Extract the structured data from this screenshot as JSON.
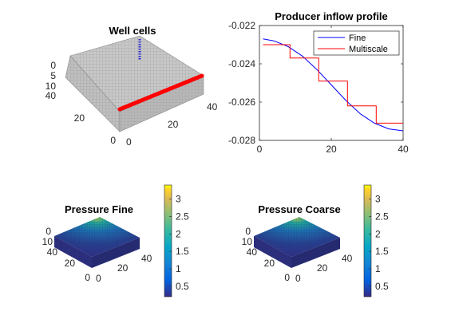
{
  "colors": {
    "grid_gray": "#b4b4b4",
    "well_red": "#ff0000",
    "well_blue": "#2a2ad0",
    "fine_line": "#0000ff",
    "ms_line": "#ff0000",
    "axis": "#262626"
  },
  "chart_data": [
    {
      "type": "scatter",
      "title": "Well cells",
      "x_ticks": [
        "0",
        "20",
        "40"
      ],
      "y_ticks": [
        "0",
        "20",
        "40"
      ],
      "z_ticks": [
        "0",
        "5",
        "10"
      ],
      "xlim": [
        0,
        40
      ],
      "ylim": [
        0,
        40
      ],
      "zlim": [
        0,
        10
      ]
    },
    {
      "type": "line",
      "title": "Producer inflow profile",
      "xlim": [
        0,
        40
      ],
      "ylim": [
        -0.028,
        -0.022
      ],
      "x_ticks": [
        "0",
        "20",
        "40"
      ],
      "y_ticks": [
        "-0.022",
        "-0.024",
        "-0.026",
        "-0.028"
      ],
      "legend_position": "top-right",
      "series": [
        {
          "name": "Fine",
          "color": "#0000ff",
          "x": [
            1,
            4,
            8,
            12,
            16,
            20,
            24,
            28,
            32,
            36,
            40
          ],
          "y": [
            -0.0227,
            -0.0228,
            -0.0231,
            -0.0236,
            -0.0243,
            -0.0251,
            -0.0259,
            -0.0266,
            -0.0271,
            -0.0274,
            -0.0275
          ]
        },
        {
          "name": "Multiscale",
          "color": "#ff0000",
          "x": [
            1,
            8.5,
            8.5,
            16.5,
            16.5,
            24.5,
            24.5,
            32.5,
            32.5,
            40
          ],
          "y": [
            -0.023,
            -0.023,
            -0.0237,
            -0.0237,
            -0.0249,
            -0.0249,
            -0.0262,
            -0.0262,
            -0.0271,
            -0.0271
          ]
        }
      ]
    },
    {
      "type": "heatmap",
      "title": "Pressure Fine",
      "x_ticks": [
        "0",
        "20",
        "40"
      ],
      "y_ticks": [
        "0",
        "20",
        "40"
      ],
      "z_ticks": [
        "0",
        "10"
      ],
      "colorbar_ticks": [
        "0.5",
        "1",
        "1.5",
        "2",
        "2.5",
        "3"
      ],
      "colorbar_range": [
        0.2,
        3.4
      ]
    },
    {
      "type": "heatmap",
      "title": "Pressure Coarse",
      "x_ticks": [
        "0",
        "20",
        "40"
      ],
      "y_ticks": [
        "0",
        "20",
        "40"
      ],
      "z_ticks": [
        "0",
        "10"
      ],
      "colorbar_ticks": [
        "0.5",
        "1",
        "1.5",
        "2",
        "2.5",
        "3"
      ],
      "colorbar_range": [
        0.2,
        3.4
      ]
    }
  ]
}
